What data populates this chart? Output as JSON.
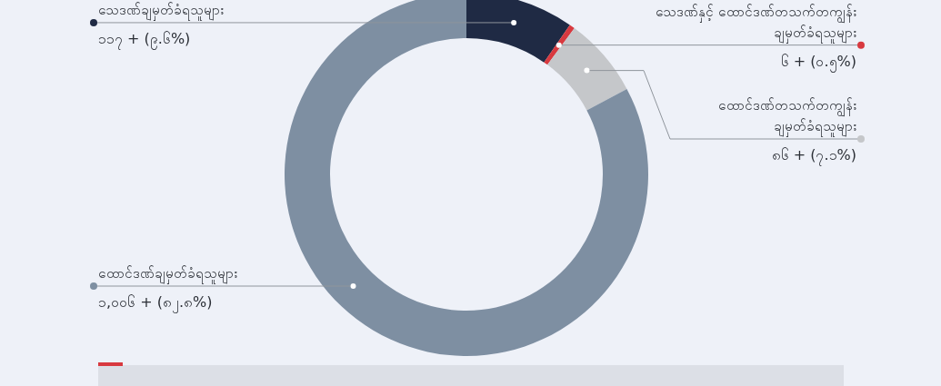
{
  "chart_data": {
    "type": "donut",
    "categories": [
      "သေဒဏ်ချမှတ်ခံရသူများ",
      "သေဒဏ်နှင့် ထောင်ဒဏ်တသက်တကျွန်း\nချမှတ်ခံရသူများ",
      "ထောင်ဒဏ်တသက်တကျွန်း\nချမှတ်ခံရသူများ",
      "ထောင်ဒဏ်ချမှတ်ခံရသူများ"
    ],
    "values": [
      117,
      6,
      86,
      1006
    ],
    "colors": [
      "#1f2a44",
      "#d8393f",
      "#c5c7ca",
      "#7e8fa2"
    ],
    "value_labels": [
      "၁၁၇ + (၉.၆%)",
      "၆ + (၀.၅%)",
      "၈၆ + (၇.၁%)",
      "၁,၀၀၆ + (၈၂.၈%)"
    ]
  }
}
